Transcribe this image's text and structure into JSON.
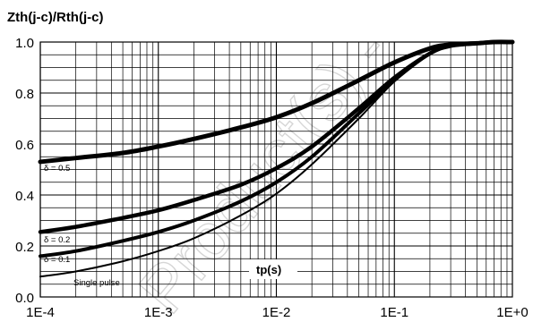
{
  "chart_data": {
    "type": "line",
    "title": "Zth(j-c)/Rth(j-c)",
    "xlabel": "tp(s)",
    "ylabel": "",
    "x_scale": "log",
    "xlim": [
      0.0001,
      1
    ],
    "ylim": [
      0.0,
      1.0
    ],
    "x_tick_labels": [
      "1E-4",
      "1E-3",
      "1E-2",
      "1E-1",
      "1E+0"
    ],
    "y_tick_labels": [
      "0.0",
      "0.2",
      "0.4",
      "0.6",
      "0.8",
      "1.0"
    ],
    "grid": true,
    "series": [
      {
        "name": "δ = 0.5",
        "x": [
          0.0001,
          0.0002,
          0.0005,
          0.001,
          0.002,
          0.005,
          0.01,
          0.02,
          0.05,
          0.1,
          0.2,
          0.3,
          0.5,
          0.7,
          1.0
        ],
        "y": [
          0.53,
          0.545,
          0.565,
          0.59,
          0.62,
          0.665,
          0.705,
          0.76,
          0.85,
          0.92,
          0.975,
          0.99,
          0.995,
          1.0,
          1.0
        ]
      },
      {
        "name": "δ = 0.2",
        "x": [
          0.0001,
          0.0002,
          0.0005,
          0.001,
          0.002,
          0.005,
          0.01,
          0.02,
          0.05,
          0.1,
          0.2,
          0.3,
          0.5,
          0.7,
          1.0
        ],
        "y": [
          0.255,
          0.275,
          0.31,
          0.34,
          0.38,
          0.44,
          0.505,
          0.59,
          0.74,
          0.86,
          0.955,
          0.985,
          0.995,
          1.0,
          1.0
        ]
      },
      {
        "name": "δ = 0.1",
        "x": [
          0.0001,
          0.0002,
          0.0005,
          0.001,
          0.002,
          0.005,
          0.01,
          0.02,
          0.05,
          0.1,
          0.2,
          0.3,
          0.5,
          0.7,
          1.0
        ],
        "y": [
          0.16,
          0.18,
          0.22,
          0.255,
          0.3,
          0.375,
          0.45,
          0.55,
          0.72,
          0.85,
          0.955,
          0.985,
          0.995,
          1.0,
          1.0
        ]
      },
      {
        "name": "Single pulse",
        "x": [
          0.0001,
          0.0002,
          0.0005,
          0.001,
          0.002,
          0.005,
          0.01,
          0.02,
          0.05,
          0.1,
          0.2,
          0.3,
          0.5,
          0.7,
          1.0
        ],
        "y": [
          0.08,
          0.1,
          0.14,
          0.18,
          0.23,
          0.32,
          0.405,
          0.52,
          0.7,
          0.845,
          0.955,
          0.985,
          0.995,
          1.0,
          1.0
        ]
      }
    ],
    "annotations": [
      {
        "text": "δ = 0.5",
        "series": "δ = 0.5"
      },
      {
        "text": "δ = 0.2",
        "series": "δ = 0.2"
      },
      {
        "text": "δ = 0.1",
        "series": "δ = 0.1"
      },
      {
        "text": "Single pulse",
        "series": "Single pulse"
      }
    ],
    "watermark": "Product(s) -"
  }
}
